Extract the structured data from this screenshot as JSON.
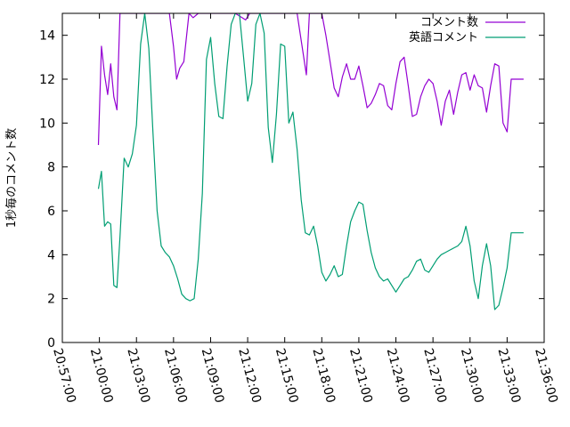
{
  "chart_data": {
    "type": "line",
    "ylabel": "1秒毎のコメント数",
    "xlabel": "",
    "title": "",
    "ylim": [
      0,
      15
    ],
    "yticks": [
      0,
      2,
      4,
      6,
      8,
      10,
      12,
      14
    ],
    "xlim": [
      "20:57:00",
      "21:36:00"
    ],
    "xticks": [
      "20:57:00",
      "21:00:00",
      "21:03:00",
      "21:06:00",
      "21:09:00",
      "21:12:00",
      "21:15:00",
      "21:18:00",
      "21:21:00",
      "21:24:00",
      "21:27:00",
      "21:30:00",
      "21:33:00",
      "21:36:00"
    ],
    "legend_position": "top-right",
    "grid": false,
    "series": [
      {
        "name": "コメント数",
        "color": "#9400d3",
        "x": [
          "20:59:55",
          "21:00:10",
          "21:00:25",
          "21:00:40",
          "21:00:55",
          "21:01:10",
          "21:01:25",
          "21:01:40",
          "21:02:00",
          "21:03:00",
          "21:04:00",
          "21:05:00",
          "21:05:40",
          "21:06:00",
          "21:06:15",
          "21:06:30",
          "21:06:50",
          "21:07:15",
          "21:07:35",
          "21:08:00",
          "21:09:00",
          "21:10:00",
          "21:11:00",
          "21:11:50",
          "21:12:10",
          "21:12:30",
          "21:13:00",
          "21:14:00",
          "21:15:00",
          "21:16:00",
          "21:16:45",
          "21:17:00",
          "21:17:30",
          "21:18:00",
          "21:18:20",
          "21:18:40",
          "21:19:00",
          "21:19:20",
          "21:19:40",
          "21:20:00",
          "21:20:20",
          "21:20:40",
          "21:21:00",
          "21:21:20",
          "21:21:40",
          "21:22:00",
          "21:22:20",
          "21:22:40",
          "21:23:00",
          "21:23:20",
          "21:23:40",
          "21:24:00",
          "21:24:20",
          "21:24:40",
          "21:25:00",
          "21:25:20",
          "21:25:40",
          "21:26:00",
          "21:26:20",
          "21:26:40",
          "21:27:00",
          "21:27:20",
          "21:27:40",
          "21:28:00",
          "21:28:20",
          "21:28:40",
          "21:29:00",
          "21:29:20",
          "21:29:40",
          "21:30:00",
          "21:30:20",
          "21:30:40",
          "21:31:00",
          "21:31:20",
          "21:31:40",
          "21:32:00",
          "21:32:20",
          "21:32:40",
          "21:33:00",
          "21:33:20",
          "21:33:40",
          "21:34:00",
          "21:34:20"
        ],
        "y": [
          9.0,
          13.5,
          12.2,
          11.3,
          12.7,
          11.2,
          10.6,
          15,
          15,
          15,
          15,
          15,
          15,
          13.5,
          12.0,
          12.5,
          12.8,
          15.0,
          14.8,
          15,
          15,
          15,
          15,
          14.7,
          15.0,
          15,
          15,
          15,
          15,
          15,
          12.2,
          15,
          15,
          15,
          14.0,
          12.8,
          11.6,
          11.2,
          12.1,
          12.7,
          12.0,
          12.0,
          12.6,
          11.7,
          10.7,
          10.9,
          11.3,
          11.8,
          11.7,
          10.8,
          10.6,
          11.8,
          12.8,
          13.0,
          11.7,
          10.3,
          10.4,
          11.2,
          11.7,
          12.0,
          11.8,
          11.0,
          9.9,
          11.0,
          11.5,
          10.4,
          11.4,
          12.2,
          12.3,
          11.5,
          12.2,
          11.7,
          11.6,
          10.5,
          11.7,
          12.7,
          12.6,
          10.0,
          9.6,
          12.0,
          12.0,
          12.0,
          12.0
        ]
      },
      {
        "name": "英語コメント",
        "color": "#009e73",
        "x": [
          "20:59:55",
          "21:00:10",
          "21:00:25",
          "21:00:40",
          "21:00:55",
          "21:01:10",
          "21:01:25",
          "21:01:40",
          "21:02:00",
          "21:02:20",
          "21:02:40",
          "21:03:00",
          "21:03:20",
          "21:03:40",
          "21:04:00",
          "21:04:20",
          "21:04:40",
          "21:05:00",
          "21:05:20",
          "21:05:40",
          "21:06:00",
          "21:06:20",
          "21:06:40",
          "21:07:00",
          "21:07:20",
          "21:07:40",
          "21:08:00",
          "21:08:20",
          "21:08:40",
          "21:09:00",
          "21:09:20",
          "21:09:40",
          "21:10:00",
          "21:10:20",
          "21:10:40",
          "21:11:00",
          "21:11:20",
          "21:11:40",
          "21:12:00",
          "21:12:20",
          "21:12:40",
          "21:13:00",
          "21:13:20",
          "21:13:40",
          "21:14:00",
          "21:14:20",
          "21:14:40",
          "21:15:00",
          "21:15:20",
          "21:15:40",
          "21:16:00",
          "21:16:20",
          "21:16:40",
          "21:17:00",
          "21:17:20",
          "21:17:40",
          "21:18:00",
          "21:18:20",
          "21:18:40",
          "21:19:00",
          "21:19:20",
          "21:19:40",
          "21:20:00",
          "21:20:20",
          "21:20:40",
          "21:21:00",
          "21:21:20",
          "21:21:40",
          "21:22:00",
          "21:22:20",
          "21:22:40",
          "21:23:00",
          "21:23:20",
          "21:23:40",
          "21:24:00",
          "21:24:20",
          "21:24:40",
          "21:25:00",
          "21:25:20",
          "21:25:40",
          "21:26:00",
          "21:26:20",
          "21:26:40",
          "21:27:00",
          "21:27:20",
          "21:27:40",
          "21:28:00",
          "21:28:20",
          "21:28:40",
          "21:29:00",
          "21:29:20",
          "21:29:40",
          "21:30:00",
          "21:30:20",
          "21:30:40",
          "21:31:00",
          "21:31:20",
          "21:31:40",
          "21:32:00",
          "21:32:20",
          "21:32:40",
          "21:33:00",
          "21:33:20",
          "21:33:40",
          "21:34:00",
          "21:34:20"
        ],
        "y": [
          7.0,
          7.8,
          5.3,
          5.5,
          5.4,
          2.6,
          2.5,
          4.8,
          8.4,
          8.0,
          8.6,
          9.9,
          13.6,
          15,
          13.4,
          9.6,
          6.0,
          4.4,
          4.1,
          3.9,
          3.5,
          2.9,
          2.2,
          2.0,
          1.9,
          2.0,
          3.8,
          6.8,
          12.9,
          13.9,
          11.8,
          10.3,
          10.2,
          12.6,
          14.5,
          15,
          15,
          13.0,
          11.0,
          11.8,
          14.5,
          15,
          14.1,
          9.8,
          8.2,
          10.4,
          13.6,
          13.5,
          10.0,
          10.5,
          8.8,
          6.5,
          5.0,
          4.9,
          5.3,
          4.4,
          3.2,
          2.8,
          3.1,
          3.5,
          3.0,
          3.1,
          4.4,
          5.5,
          6.0,
          6.4,
          6.3,
          5.1,
          4.1,
          3.4,
          3.0,
          2.8,
          2.9,
          2.6,
          2.3,
          2.6,
          2.9,
          3.0,
          3.3,
          3.7,
          3.8,
          3.3,
          3.2,
          3.5,
          3.8,
          4.0,
          4.1,
          4.2,
          4.3,
          4.4,
          4.6,
          5.3,
          4.4,
          2.8,
          2.0,
          3.5,
          4.5,
          3.5,
          1.5,
          1.7,
          2.5,
          3.4,
          5.0,
          5.0,
          5.0,
          5.0
        ]
      }
    ]
  }
}
